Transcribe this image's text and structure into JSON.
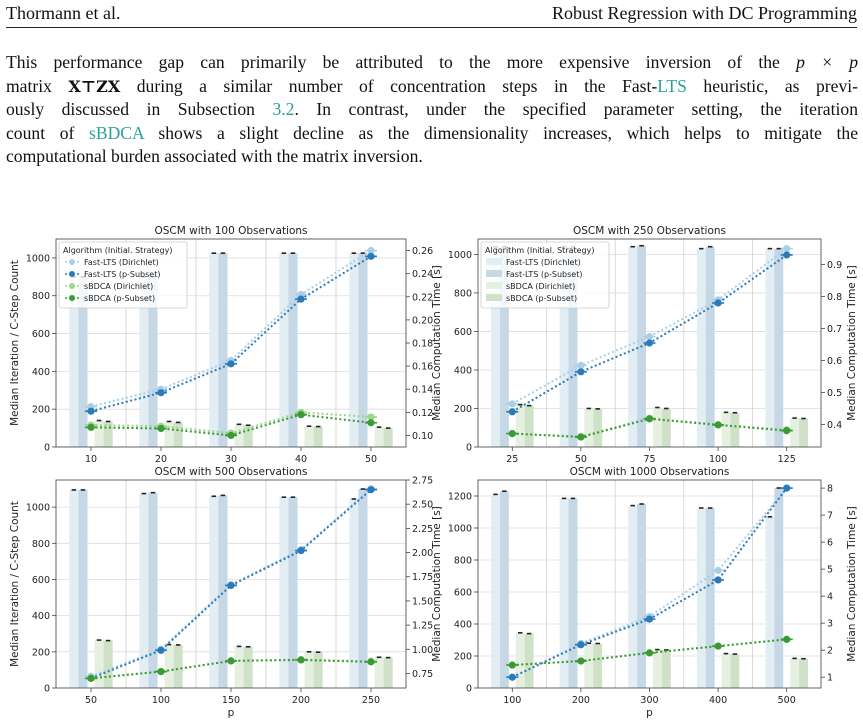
{
  "header": {
    "left": "Thormann et al.",
    "right": "Robust Regression with DC Programming"
  },
  "paragraph": {
    "l1a": "This performance gap can primarily be attributed to the more expensive inversion of the ",
    "l1m": "p × p",
    "l2a": "matrix ",
    "l2m": "X⊤ZX",
    "l2b": " during a similar number of concentration steps in the Fast-",
    "l2c": "LTS",
    "l2d": " heuristic, as previ-",
    "l3a": "ously discussed in Subsection ",
    "l3b": "3.2",
    "l3c": ". In contrast, under the specified parameter setting, the iteration",
    "l4a": "count of ",
    "l4b": "sBDCA",
    "l4c": " shows a slight decline as the dimensionality increases, which helps to mitigate the",
    "l5": "computational burden associated with the matrix inversion."
  },
  "colors": {
    "fast_dir": "#a8cfe6",
    "fast_p": "#2b7bba",
    "sbdca_dir": "#9fd68a",
    "sbdca_p": "#3a9b34",
    "bar_fast_dir": "#e3edf4",
    "bar_fast_p": "#c6d7e6",
    "bar_sbdca_dir": "#e6f0e1",
    "bar_sbdca_p": "#cfe2c8"
  },
  "legend": {
    "title": "Algorithm (Initial. Strategy)",
    "entries": [
      "Fast-LTS (Dirichlet)",
      "Fast-LTS (p-Subset)",
      "sBDCA (Dirichlet)",
      "sBDCA (p-Subset)"
    ]
  },
  "chart_data": [
    {
      "type": "bar+line",
      "title": "OSCM with 100 Observations",
      "xlabel": "",
      "ylabel_left": "Median Iteration / C-Step Count",
      "ylabel_right": "Median Computation Time [s]",
      "categories": [
        "10",
        "20",
        "30",
        "40",
        "50"
      ],
      "ylim_left": [
        0,
        1100
      ],
      "yticks_left": [
        "0",
        "200",
        "400",
        "600",
        "800",
        "1000"
      ],
      "ylim_right": [
        0.09,
        0.27
      ],
      "yticks_right": [
        "0.10",
        "0.12",
        "0.14",
        "0.16",
        "0.18",
        "0.20",
        "0.22",
        "0.24",
        "0.26"
      ],
      "bars": [
        {
          "name": "Fast-LTS (Dirichlet)",
          "values": [
            900,
            900,
            1025,
            1025,
            1025
          ]
        },
        {
          "name": "Fast-LTS (p-Subset)",
          "values": [
            900,
            900,
            1025,
            1025,
            1025
          ]
        },
        {
          "name": "sBDCA (Dirichlet)",
          "values": [
            140,
            135,
            120,
            110,
            105
          ]
        },
        {
          "name": "sBDCA (p-Subset)",
          "values": [
            135,
            130,
            115,
            108,
            100
          ]
        }
      ],
      "lines": [
        {
          "name": "Fast-LTS (Dirichlet)",
          "values": [
            0.125,
            0.14,
            0.165,
            0.222,
            0.26
          ]
        },
        {
          "name": "Fast-LTS (p-Subset)",
          "values": [
            0.121,
            0.137,
            0.162,
            0.218,
            0.255
          ]
        },
        {
          "name": "sBDCA (Dirichlet)",
          "values": [
            0.109,
            0.108,
            0.102,
            0.12,
            0.116
          ]
        },
        {
          "name": "sBDCA (p-Subset)",
          "values": [
            0.107,
            0.106,
            0.1,
            0.118,
            0.111
          ]
        }
      ],
      "legend_loc": "upper left",
      "grid": true
    },
    {
      "type": "bar+line",
      "title": "OSCM with 250 Observations",
      "xlabel": "",
      "ylabel_left": "",
      "ylabel_right": "Median Computation Time [s]",
      "categories": [
        "25",
        "50",
        "75",
        "100",
        "125"
      ],
      "ylim_left": [
        0,
        1080
      ],
      "yticks_left": [
        "0",
        "200",
        "400",
        "600",
        "800",
        "1000"
      ],
      "ylim_right": [
        0.33,
        0.98
      ],
      "yticks_right": [
        "0.4",
        "0.5",
        "0.6",
        "0.7",
        "0.8",
        "0.9"
      ],
      "bars": [
        {
          "name": "Fast-LTS (Dirichlet)",
          "values": [
            1040,
            1040,
            1040,
            1030,
            1030
          ]
        },
        {
          "name": "Fast-LTS (p-Subset)",
          "values": [
            1040,
            1040,
            1045,
            1040,
            1030
          ]
        },
        {
          "name": "sBDCA (Dirichlet)",
          "values": [
            220,
            200,
            205,
            180,
            150
          ]
        },
        {
          "name": "sBDCA (p-Subset)",
          "values": [
            215,
            198,
            200,
            178,
            148
          ]
        }
      ],
      "lines": [
        {
          "name": "Fast-LTS (Dirichlet)",
          "values": [
            0.465,
            0.585,
            0.675,
            0.79,
            0.95
          ]
        },
        {
          "name": "Fast-LTS (p-Subset)",
          "values": [
            0.44,
            0.565,
            0.655,
            0.78,
            0.93
          ]
        },
        {
          "name": "sBDCA (Dirichlet)",
          "values": [
            0.372,
            0.363,
            0.42,
            0.4,
            0.384
          ]
        },
        {
          "name": "sBDCA (p-Subset)",
          "values": [
            0.372,
            0.361,
            0.418,
            0.399,
            0.381
          ]
        }
      ],
      "legend_loc": "upper left",
      "grid": true
    },
    {
      "type": "bar+line",
      "title": "OSCM with 500 Observations",
      "xlabel": "p",
      "ylabel_left": "Median Iteration / C-Step Count",
      "ylabel_right": "Median Computation Time [s]",
      "categories": [
        "50",
        "100",
        "150",
        "200",
        "250"
      ],
      "ylim_left": [
        0,
        1150
      ],
      "yticks_left": [
        "0",
        "200",
        "400",
        "600",
        "800",
        "1000"
      ],
      "ylim_right": [
        0.6,
        2.75
      ],
      "yticks_right": [
        "0.75",
        "1.00",
        "1.25",
        "1.50",
        "1.75",
        "2.00",
        "2.25",
        "2.50",
        "2.75"
      ],
      "bars": [
        {
          "name": "Fast-LTS (Dirichlet)",
          "values": [
            1095,
            1075,
            1060,
            1055,
            1045
          ]
        },
        {
          "name": "Fast-LTS (p-Subset)",
          "values": [
            1095,
            1080,
            1065,
            1055,
            1100
          ]
        },
        {
          "name": "sBDCA (Dirichlet)",
          "values": [
            265,
            240,
            230,
            200,
            170
          ]
        },
        {
          "name": "sBDCA (p-Subset)",
          "values": [
            262,
            238,
            228,
            198,
            168
          ]
        }
      ],
      "lines": [
        {
          "name": "Fast-LTS (Dirichlet)",
          "values": [
            0.72,
            1.0,
            1.67,
            2.03,
            2.66
          ]
        },
        {
          "name": "Fast-LTS (p-Subset)",
          "values": [
            0.7,
            0.99,
            1.66,
            2.02,
            2.65
          ]
        },
        {
          "name": "sBDCA (Dirichlet)",
          "values": [
            0.7,
            0.77,
            0.88,
            0.895,
            0.875
          ]
        },
        {
          "name": "sBDCA (p-Subset)",
          "values": [
            0.7,
            0.77,
            0.88,
            0.89,
            0.87
          ]
        }
      ],
      "grid": true
    },
    {
      "type": "bar+line",
      "title": "OSCM with 1000 Observations",
      "xlabel": "p",
      "ylabel_left": "",
      "ylabel_right": "Median Computation Time [s]",
      "categories": [
        "100",
        "200",
        "300",
        "400",
        "500"
      ],
      "ylim_left": [
        0,
        1300
      ],
      "yticks_left": [
        "0",
        "200",
        "400",
        "600",
        "800",
        "1000",
        "1200"
      ],
      "ylim_right": [
        0.6,
        8.3
      ],
      "yticks_right": [
        "1",
        "2",
        "3",
        "4",
        "5",
        "6",
        "7",
        "8"
      ],
      "bars": [
        {
          "name": "Fast-LTS (Dirichlet)",
          "values": [
            1210,
            1185,
            1140,
            1125,
            1070
          ]
        },
        {
          "name": "Fast-LTS (p-Subset)",
          "values": [
            1230,
            1185,
            1150,
            1125,
            1250
          ]
        },
        {
          "name": "sBDCA (Dirichlet)",
          "values": [
            345,
            280,
            240,
            215,
            185
          ]
        },
        {
          "name": "sBDCA (p-Subset)",
          "values": [
            340,
            278,
            238,
            212,
            183
          ]
        }
      ],
      "lines": [
        {
          "name": "Fast-LTS (Dirichlet)",
          "values": [
            1.0,
            2.25,
            3.25,
            4.95,
            8.0
          ]
        },
        {
          "name": "Fast-LTS (p-Subset)",
          "values": [
            1.0,
            2.2,
            3.15,
            4.6,
            8.0
          ]
        },
        {
          "name": "sBDCA (Dirichlet)",
          "values": [
            1.45,
            1.6,
            1.9,
            2.15,
            2.4
          ]
        },
        {
          "name": "sBDCA (p-Subset)",
          "values": [
            1.45,
            1.6,
            1.9,
            2.15,
            2.4
          ]
        }
      ],
      "grid": true
    }
  ]
}
